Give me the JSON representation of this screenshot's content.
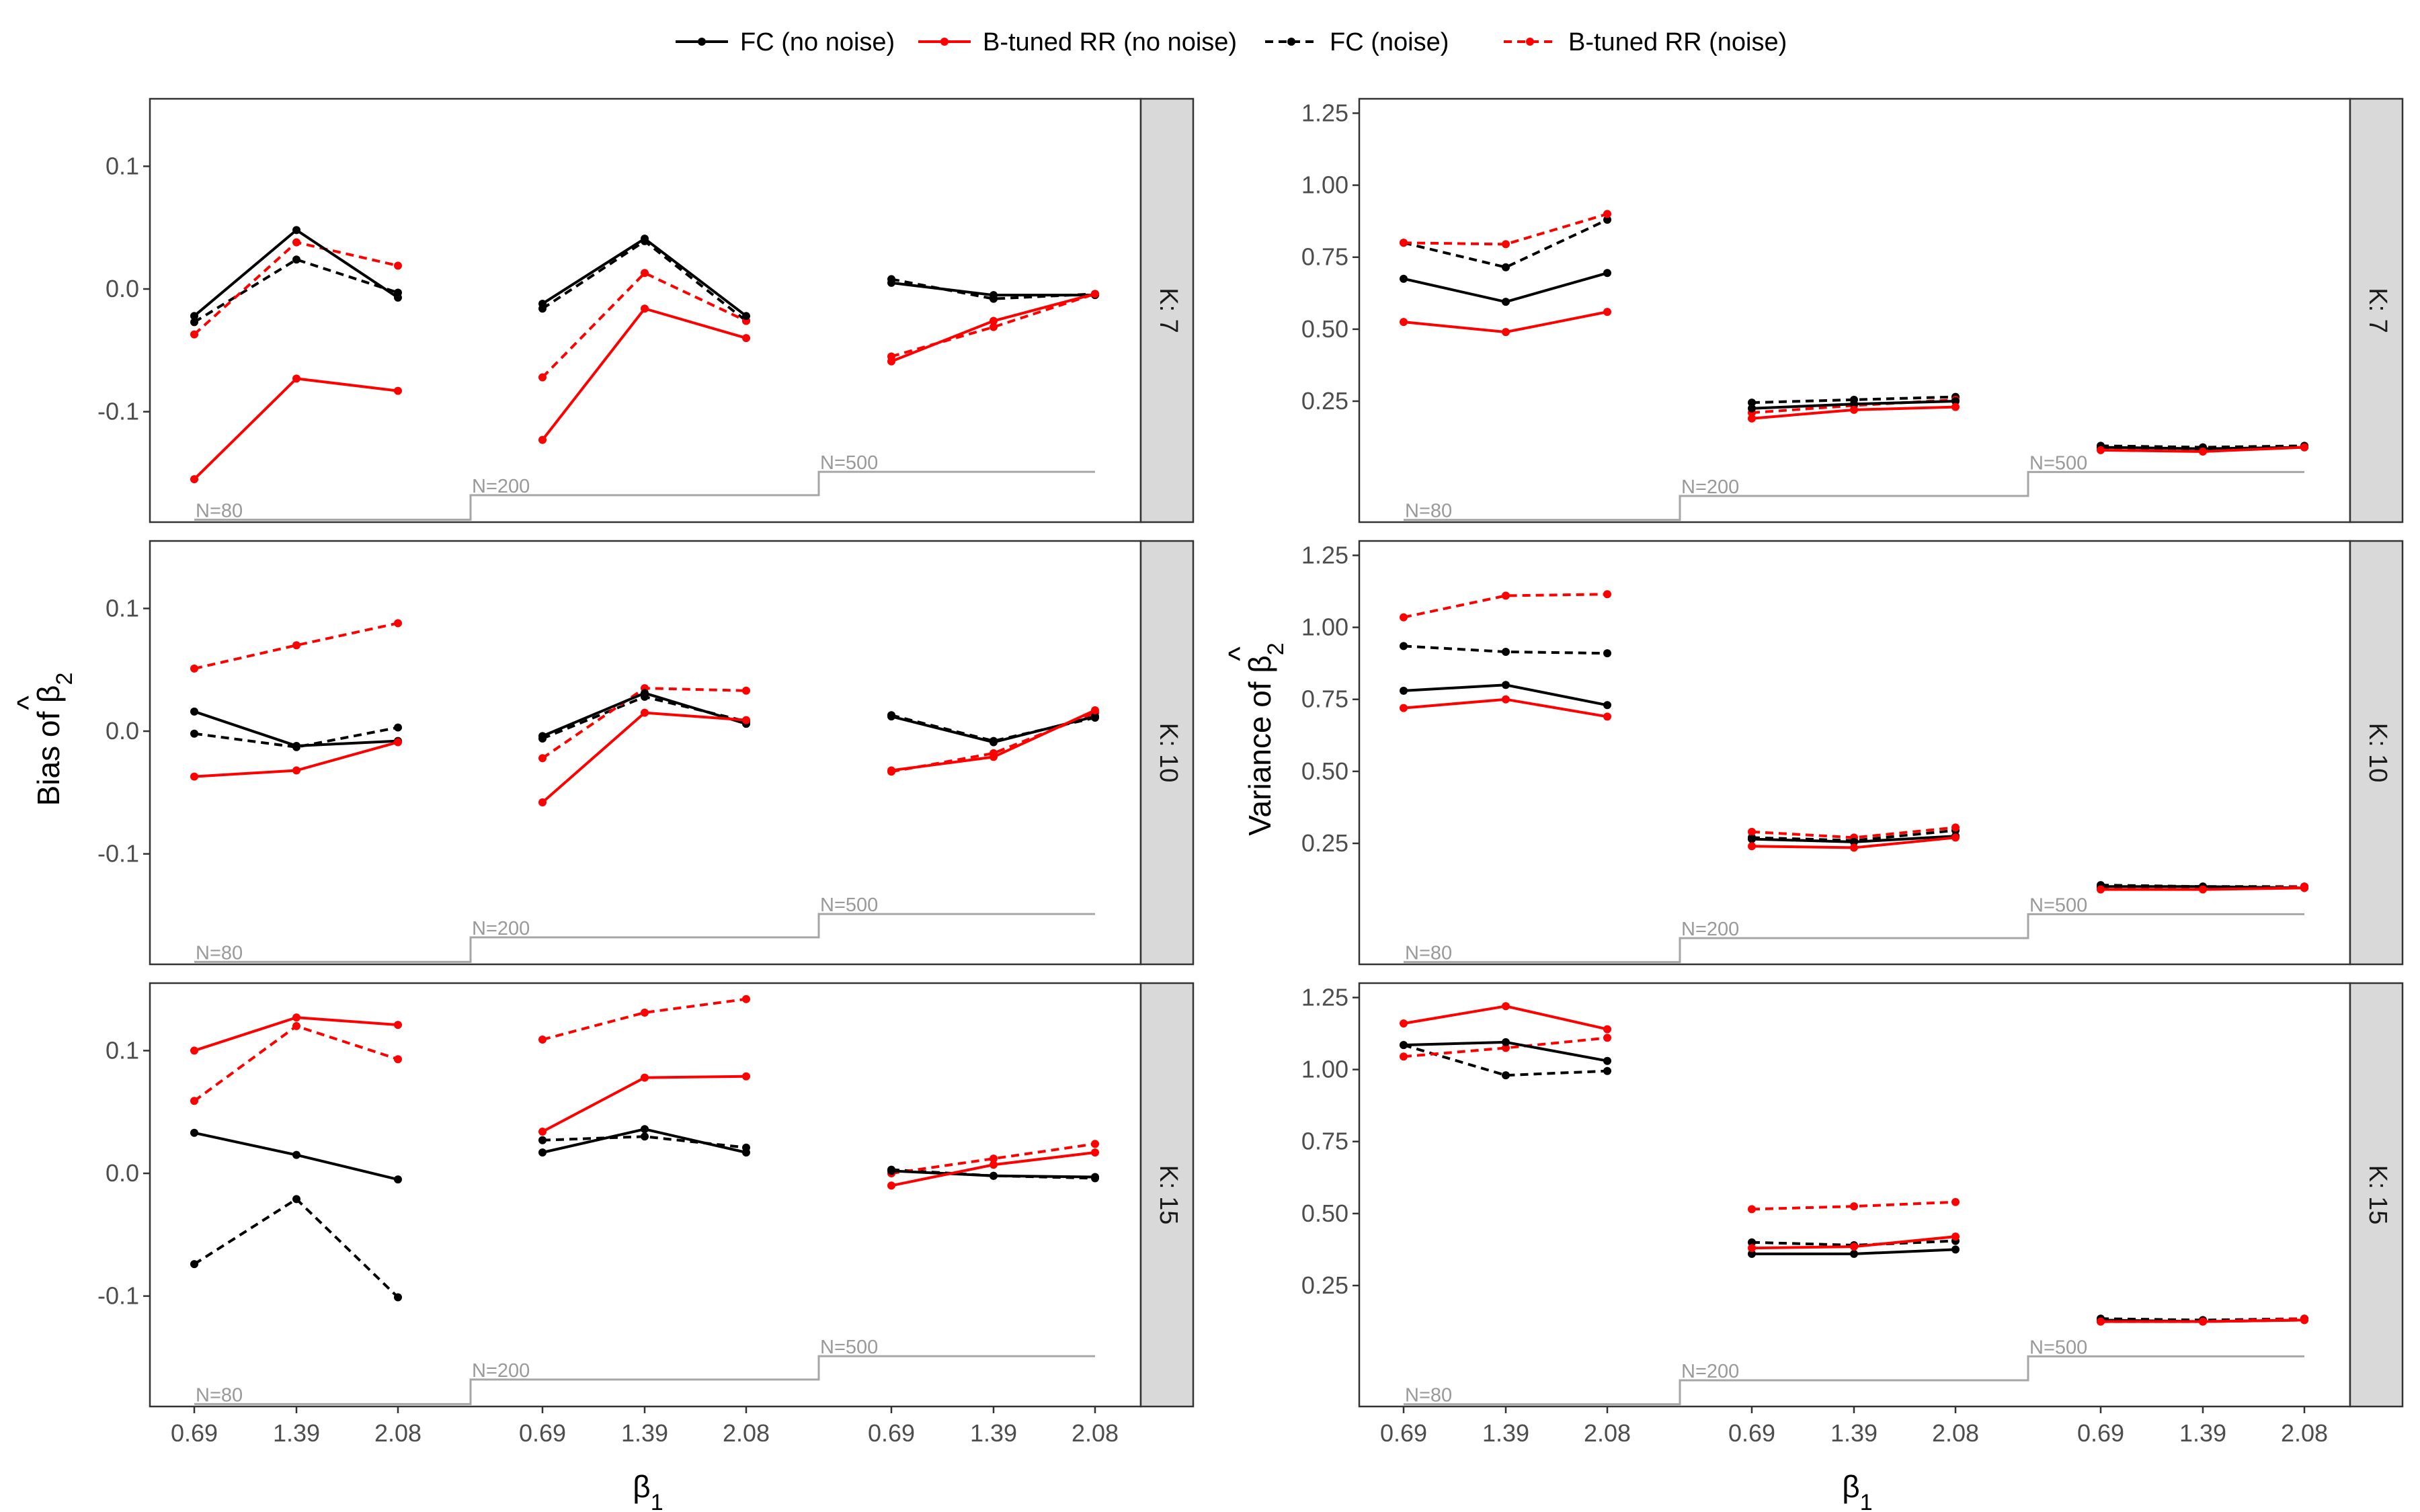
{
  "legend": [
    {
      "label": "FC (no noise)",
      "color": "#000000",
      "dash": false
    },
    {
      "label": "B-tuned RR (no noise)",
      "color": "#ff0000",
      "dash": false
    },
    {
      "label": "FC (noise)",
      "color": "#000000",
      "dash": true
    },
    {
      "label": "B-tuned RR (noise)",
      "color": "#ff0000",
      "dash": true
    }
  ],
  "axes": {
    "x_title": "β1",
    "bias_title": "Bias of β̂2",
    "var_title": "Variance of β̂2"
  },
  "chart_data": [
    {
      "type": "line",
      "title": "Bias of beta2-hat",
      "ylabel": "Bias of β̂2",
      "xlabel": "β1",
      "x_ticks": [
        "0.69",
        "1.39",
        "2.08"
      ],
      "groups": [
        "N=80",
        "N=200",
        "N=500"
      ],
      "ylim": [
        -0.19,
        0.155
      ],
      "yticks": [
        -0.1,
        0.0,
        0.1
      ],
      "ytick_labels": [
        "-0.1",
        "0.0",
        "0.1"
      ],
      "n_ref_y": [
        -0.188,
        -0.168,
        -0.149
      ],
      "facets": [
        {
          "label": "K: 7",
          "series": [
            {
              "name": "FC (no noise)",
              "values": [
                [
                  -0.022,
                  0.048,
                  -0.007
                ],
                [
                  -0.012,
                  0.041,
                  -0.022
                ],
                [
                  0.005,
                  -0.005,
                  -0.005
                ]
              ]
            },
            {
              "name": "B-tuned RR (no noise)",
              "values": [
                [
                  -0.155,
                  -0.073,
                  -0.083
                ],
                [
                  -0.123,
                  -0.016,
                  -0.04
                ],
                [
                  -0.059,
                  -0.026,
                  -0.004
                ]
              ]
            },
            {
              "name": "FC (noise)",
              "values": [
                [
                  -0.027,
                  0.024,
                  -0.003
                ],
                [
                  -0.016,
                  0.039,
                  -0.026
                ],
                [
                  0.008,
                  -0.008,
                  -0.004
                ]
              ]
            },
            {
              "name": "B-tuned RR (noise)",
              "values": [
                [
                  -0.037,
                  0.038,
                  0.019
                ],
                [
                  -0.072,
                  0.013,
                  -0.026
                ],
                [
                  -0.055,
                  -0.031,
                  -0.004
                ]
              ]
            }
          ]
        },
        {
          "label": "K: 10",
          "series": [
            {
              "name": "FC (no noise)",
              "values": [
                [
                  0.016,
                  -0.012,
                  -0.008
                ],
                [
                  -0.004,
                  0.031,
                  0.006
                ],
                [
                  0.012,
                  -0.009,
                  0.012
                ]
              ]
            },
            {
              "name": "B-tuned RR (no noise)",
              "values": [
                [
                  -0.037,
                  -0.032,
                  -0.009
                ],
                [
                  -0.058,
                  0.015,
                  0.009
                ],
                [
                  -0.032,
                  -0.021,
                  0.017
                ]
              ]
            },
            {
              "name": "FC (noise)",
              "values": [
                [
                  -0.002,
                  -0.013,
                  0.003
                ],
                [
                  -0.006,
                  0.028,
                  0.008
                ],
                [
                  0.013,
                  -0.008,
                  0.011
                ]
              ]
            },
            {
              "name": "B-tuned RR (noise)",
              "values": [
                [
                  0.051,
                  0.07,
                  0.088
                ],
                [
                  -0.022,
                  0.035,
                  0.033
                ],
                [
                  -0.033,
                  -0.018,
                  0.015
                ]
              ]
            }
          ]
        },
        {
          "label": "K: 15",
          "series": [
            {
              "name": "FC (no noise)",
              "values": [
                [
                  0.033,
                  0.015,
                  -0.005
                ],
                [
                  0.017,
                  0.036,
                  0.017
                ],
                [
                  0.002,
                  -0.002,
                  -0.003
                ]
              ]
            },
            {
              "name": "B-tuned RR (no noise)",
              "values": [
                [
                  0.1,
                  0.127,
                  0.121
                ],
                [
                  0.034,
                  0.078,
                  0.079
                ],
                [
                  -0.01,
                  0.007,
                  0.017
                ]
              ]
            },
            {
              "name": "FC (noise)",
              "values": [
                [
                  -0.074,
                  -0.021,
                  -0.101
                ],
                [
                  0.027,
                  0.03,
                  0.021
                ],
                [
                  0.003,
                  -0.002,
                  -0.004
                ]
              ]
            },
            {
              "name": "B-tuned RR (noise)",
              "values": [
                [
                  0.059,
                  0.12,
                  0.093
                ],
                [
                  0.109,
                  0.131,
                  0.142
                ],
                [
                  0.0,
                  0.012,
                  0.024
                ]
              ]
            }
          ]
        }
      ]
    },
    {
      "type": "line",
      "title": "Variance of beta2-hat",
      "ylabel": "Variance of β̂2",
      "xlabel": "β1",
      "x_ticks": [
        "0.69",
        "1.39",
        "2.08"
      ],
      "groups": [
        "N=80",
        "N=200",
        "N=500"
      ],
      "ylim": [
        -0.17,
        1.3
      ],
      "yticks": [
        0.25,
        0.5,
        0.75,
        1.0,
        1.25
      ],
      "ytick_labels": [
        "0.25",
        "0.50",
        "0.75",
        "1.00",
        "1.25"
      ],
      "n_ref_y": [
        -0.162,
        -0.079,
        0.004
      ],
      "facets": [
        {
          "label": "K: 7",
          "series": [
            {
              "name": "FC (no noise)",
              "values": [
                [
                  0.675,
                  0.595,
                  0.695
                ],
                [
                  0.225,
                  0.24,
                  0.25
                ],
                [
                  0.09,
                  0.085,
                  0.09
                ]
              ]
            },
            {
              "name": "B-tuned RR (no noise)",
              "values": [
                [
                  0.525,
                  0.49,
                  0.56
                ],
                [
                  0.19,
                  0.22,
                  0.23
                ],
                [
                  0.08,
                  0.075,
                  0.09
                ]
              ]
            },
            {
              "name": "FC (noise)",
              "values": [
                [
                  0.8,
                  0.715,
                  0.88
                ],
                [
                  0.245,
                  0.255,
                  0.265
                ],
                [
                  0.095,
                  0.09,
                  0.095
                ]
              ]
            },
            {
              "name": "B-tuned RR (noise)",
              "values": [
                [
                  0.8,
                  0.795,
                  0.9
                ],
                [
                  0.21,
                  0.235,
                  0.255
                ],
                [
                  0.085,
                  0.08,
                  0.09
                ]
              ]
            }
          ]
        },
        {
          "label": "K: 10",
          "series": [
            {
              "name": "FC (no noise)",
              "values": [
                [
                  0.78,
                  0.8,
                  0.73
                ],
                [
                  0.265,
                  0.255,
                  0.275
                ],
                [
                  0.1,
                  0.1,
                  0.095
                ]
              ]
            },
            {
              "name": "B-tuned RR (no noise)",
              "values": [
                [
                  0.72,
                  0.75,
                  0.69
                ],
                [
                  0.24,
                  0.235,
                  0.27
                ],
                [
                  0.09,
                  0.09,
                  0.095
                ]
              ]
            },
            {
              "name": "FC (noise)",
              "values": [
                [
                  0.935,
                  0.915,
                  0.91
                ],
                [
                  0.27,
                  0.26,
                  0.295
                ],
                [
                  0.105,
                  0.1,
                  0.1
                ]
              ]
            },
            {
              "name": "B-tuned RR (noise)",
              "values": [
                [
                  1.035,
                  1.11,
                  1.115
                ],
                [
                  0.29,
                  0.27,
                  0.305
                ],
                [
                  0.095,
                  0.095,
                  0.1
                ]
              ]
            }
          ]
        },
        {
          "label": "K: 15",
          "series": [
            {
              "name": "FC (no noise)",
              "values": [
                [
                  1.085,
                  1.095,
                  1.03
                ],
                [
                  0.36,
                  0.36,
                  0.375
                ],
                [
                  0.13,
                  0.125,
                  0.13
                ]
              ]
            },
            {
              "name": "B-tuned RR (no noise)",
              "values": [
                [
                  1.16,
                  1.22,
                  1.14
                ],
                [
                  0.38,
                  0.385,
                  0.42
                ],
                [
                  0.125,
                  0.125,
                  0.13
                ]
              ]
            },
            {
              "name": "FC (noise)",
              "values": [
                [
                  1.085,
                  0.98,
                  0.995
                ],
                [
                  0.4,
                  0.39,
                  0.405
                ],
                [
                  0.135,
                  0.13,
                  0.135
                ]
              ]
            },
            {
              "name": "B-tuned RR (noise)",
              "values": [
                [
                  1.045,
                  1.075,
                  1.11
                ],
                [
                  0.515,
                  0.525,
                  0.54
                ],
                [
                  0.125,
                  0.125,
                  0.135
                ]
              ]
            }
          ]
        }
      ]
    }
  ]
}
